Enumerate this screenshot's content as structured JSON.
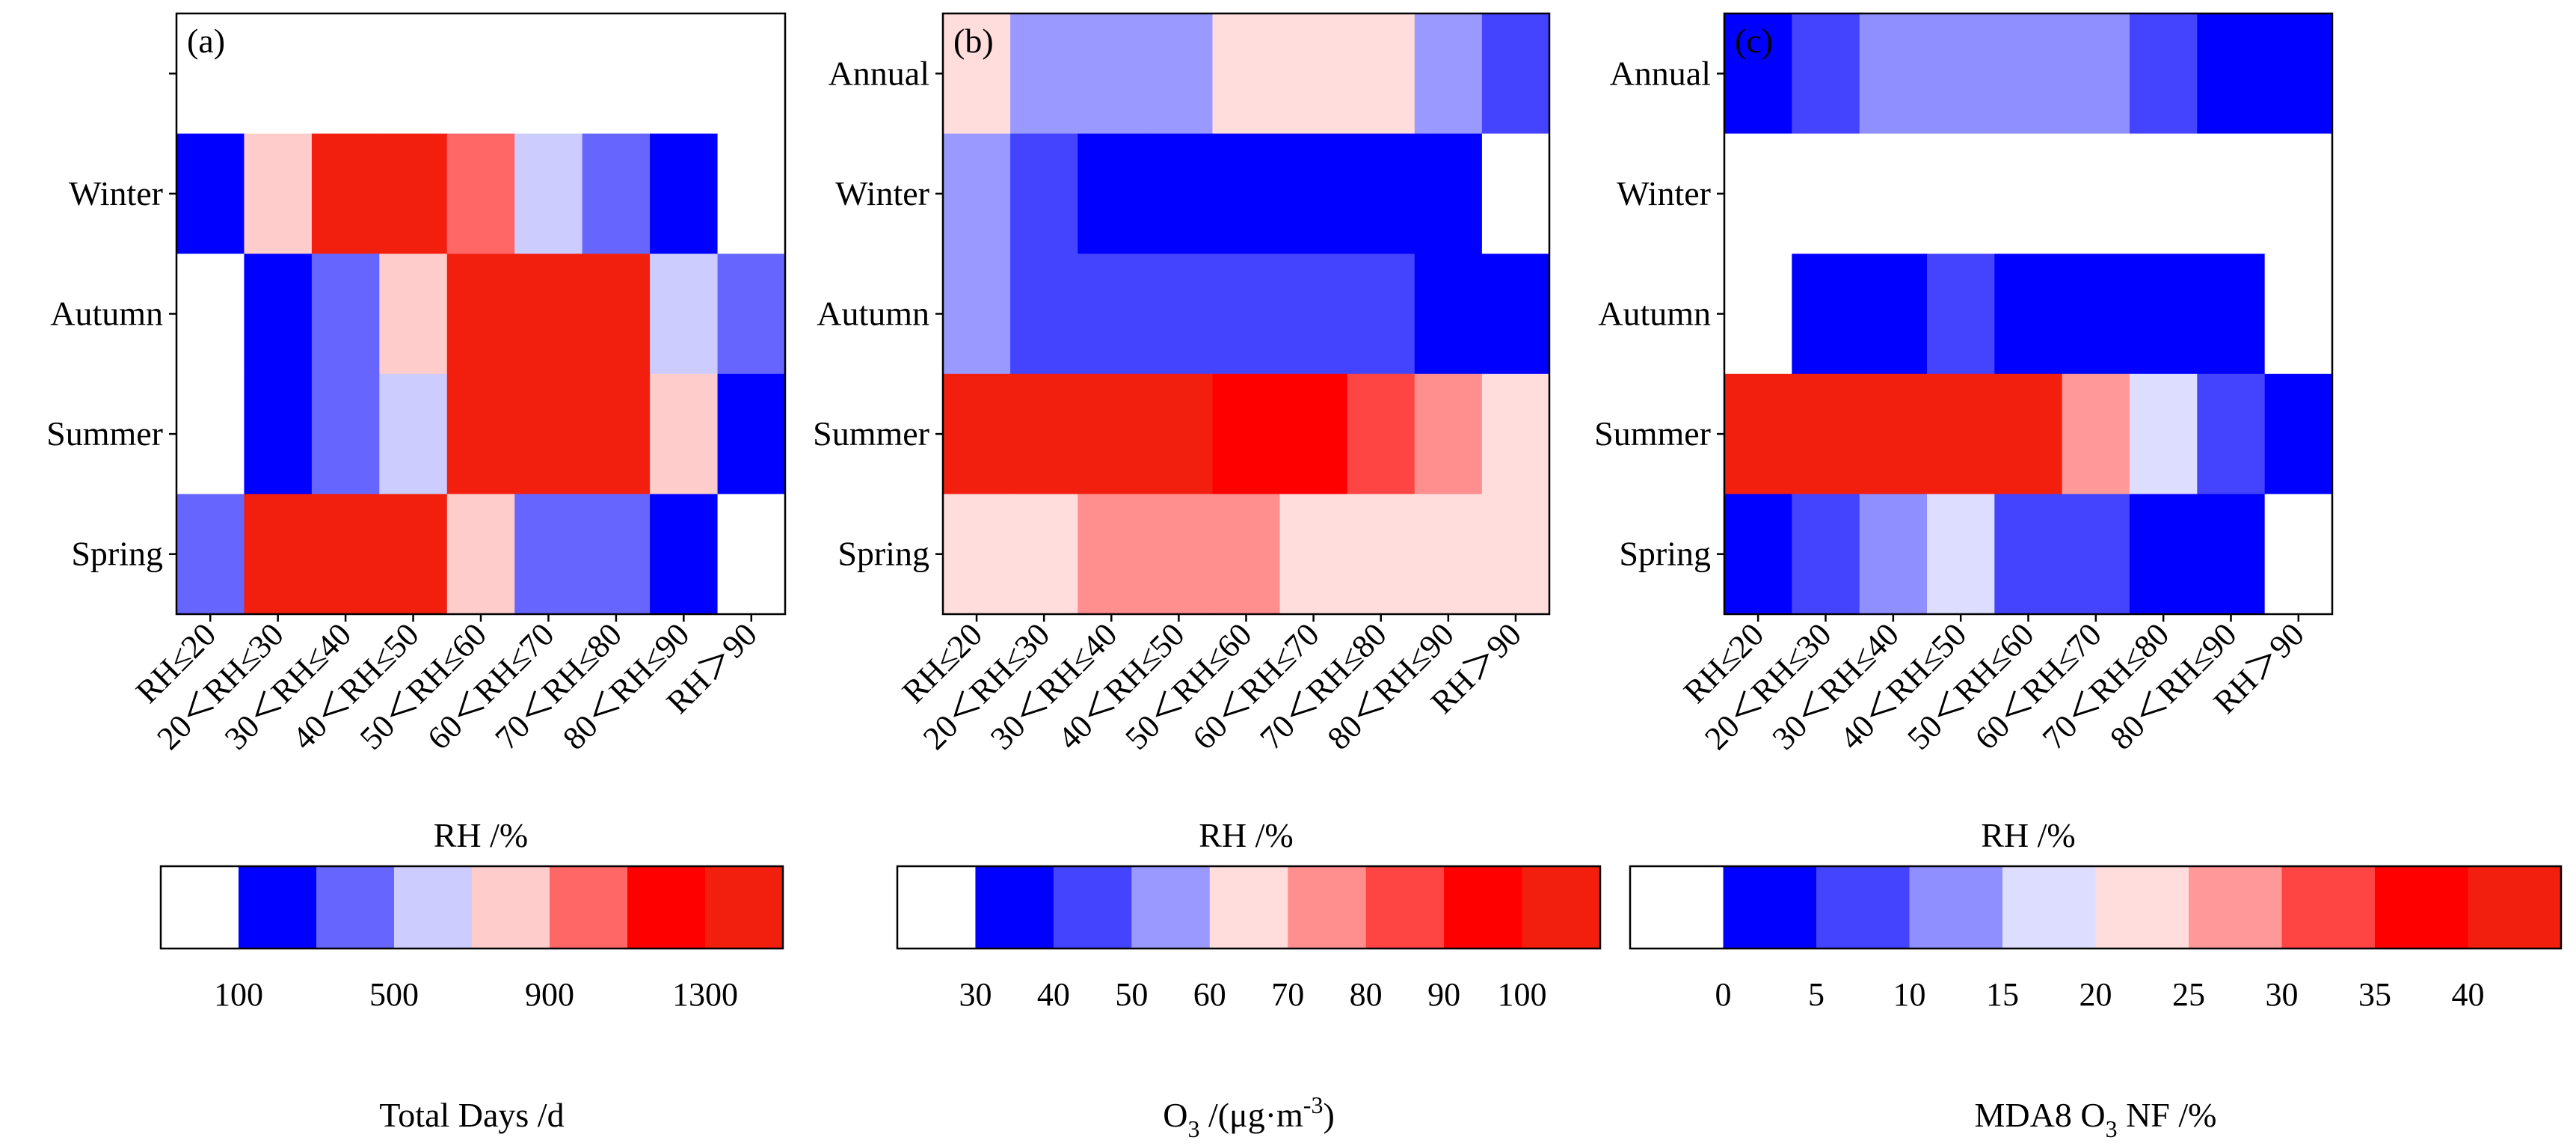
{
  "figure": {
    "x_categories": [
      "RH≤20",
      "20＜RH≤30",
      "30＜RH≤40",
      "40＜RH≤50",
      "50＜RH≤60",
      "60＜RH≤70",
      "70＜RH≤80",
      "80＜RH≤90",
      "RH＞90"
    ]
  },
  "chart_data": [
    {
      "type": "heatmap",
      "panel_label": "(a)",
      "title": "",
      "xlabel": "RH /%",
      "ylabel": "",
      "rows": [
        "",
        "Winter",
        "Autumn",
        "Summer",
        "Spring"
      ],
      "columns": [
        "RH≤20",
        "20＜RH≤30",
        "30＜RH≤40",
        "40＜RH≤50",
        "50＜RH≤60",
        "60＜RH≤70",
        "70＜RH≤80",
        "80＜RH≤90",
        "RH＞90"
      ],
      "values": [
        [
          null,
          null,
          null,
          null,
          null,
          null,
          null,
          null,
          null
        ],
        [
          200,
          800,
          1400,
          1400,
          1000,
          600,
          400,
          200,
          null
        ],
        [
          null,
          200,
          400,
          800,
          1300,
          1400,
          1300,
          600,
          400
        ],
        [
          null,
          200,
          400,
          600,
          1300,
          1400,
          1400,
          800,
          200
        ],
        [
          400,
          1300,
          1400,
          1300,
          800,
          400,
          400,
          200,
          null
        ]
      ],
      "colorbar": {
        "label": "Total Days /d",
        "label_sub": "",
        "label_rest": "",
        "tick_labels": [
          "100",
          "500",
          "900",
          "1300"
        ],
        "ticks": [
          100,
          500,
          900,
          1300
        ],
        "bounds": [
          -100,
          100,
          300,
          500,
          700,
          900,
          1100,
          1300,
          1500
        ],
        "colors": [
          "#ffffff",
          "#0000ff",
          "#6666ff",
          "#ccccff",
          "#ffcccc",
          "#ff6666",
          "#ff0000",
          "#f21f0f"
        ]
      }
    },
    {
      "type": "heatmap",
      "panel_label": "(b)",
      "title": "",
      "xlabel": "RH /%",
      "ylabel": "",
      "rows": [
        "Annual",
        "Winter",
        "Autumn",
        "Summer",
        "Spring"
      ],
      "columns": [
        "RH≤20",
        "20＜RH≤30",
        "30＜RH≤40",
        "40＜RH≤50",
        "50＜RH≤60",
        "60＜RH≤70",
        "70＜RH≤80",
        "80＜RH≤90",
        "RH＞90"
      ],
      "values": [
        [
          65,
          55,
          55,
          55,
          65,
          65,
          65,
          55,
          45
        ],
        [
          55,
          45,
          35,
          35,
          35,
          35,
          35,
          35,
          null
        ],
        [
          55,
          45,
          45,
          45,
          45,
          45,
          45,
          35,
          35
        ],
        [
          105,
          105,
          105,
          105,
          95,
          95,
          85,
          75,
          65
        ],
        [
          65,
          65,
          75,
          75,
          75,
          65,
          65,
          65,
          65
        ]
      ],
      "colorbar": {
        "label": "O",
        "label_sub": "3",
        "label_rest": " /(μg·m",
        "label_sup": "-3",
        "label_end": ")",
        "tick_labels": [
          "30",
          "40",
          "50",
          "60",
          "70",
          "80",
          "90",
          "100"
        ],
        "ticks": [
          30,
          40,
          50,
          60,
          70,
          80,
          90,
          100
        ],
        "bounds": [
          20,
          30,
          40,
          50,
          60,
          70,
          80,
          90,
          100,
          110
        ],
        "colors": [
          "#ffffff",
          "#0000ff",
          "#4444ff",
          "#9999ff",
          "#ffdddd",
          "#ff8f8f",
          "#ff4444",
          "#ff0000",
          "#f21f0f"
        ]
      }
    },
    {
      "type": "heatmap",
      "panel_label": "(c)",
      "title": "",
      "xlabel": "RH /%",
      "ylabel": "",
      "rows": [
        "Annual",
        "Winter",
        "Autumn",
        "Summer",
        "Spring"
      ],
      "columns": [
        "RH≤20",
        "20＜RH≤30",
        "30＜RH≤40",
        "40＜RH≤50",
        "50＜RH≤60",
        "60＜RH≤70",
        "70＜RH≤80",
        "80＜RH≤90",
        "RH＞90"
      ],
      "values": [
        [
          2.5,
          7.5,
          12.5,
          12.5,
          12.5,
          12.5,
          7.5,
          2.5,
          2.5
        ],
        [
          null,
          null,
          null,
          null,
          null,
          null,
          null,
          null,
          null
        ],
        [
          null,
          2.5,
          2.5,
          7.5,
          2.5,
          2.5,
          2.5,
          2.5,
          null
        ],
        [
          42.5,
          42.5,
          42.5,
          42.5,
          42.5,
          27.5,
          17.5,
          7.5,
          2.5
        ],
        [
          2.5,
          7.5,
          12.5,
          17.5,
          7.5,
          7.5,
          2.5,
          2.5,
          null
        ]
      ],
      "colorbar": {
        "label": "MDA8 O",
        "label_sub": "3",
        "label_rest": " NF /%",
        "tick_labels": [
          "0",
          "5",
          "10",
          "15",
          "20",
          "25",
          "30",
          "35",
          "40"
        ],
        "ticks": [
          0,
          5,
          10,
          15,
          20,
          25,
          30,
          35,
          40
        ],
        "bounds": [
          -5,
          0,
          5,
          10,
          15,
          20,
          25,
          30,
          35,
          40,
          45
        ],
        "colors": [
          "#ffffff",
          "#0000ff",
          "#4444ff",
          "#8f8fff",
          "#ddddff",
          "#ffdddd",
          "#ff9999",
          "#ff4444",
          "#ff0000",
          "#f21f0f"
        ]
      }
    }
  ]
}
